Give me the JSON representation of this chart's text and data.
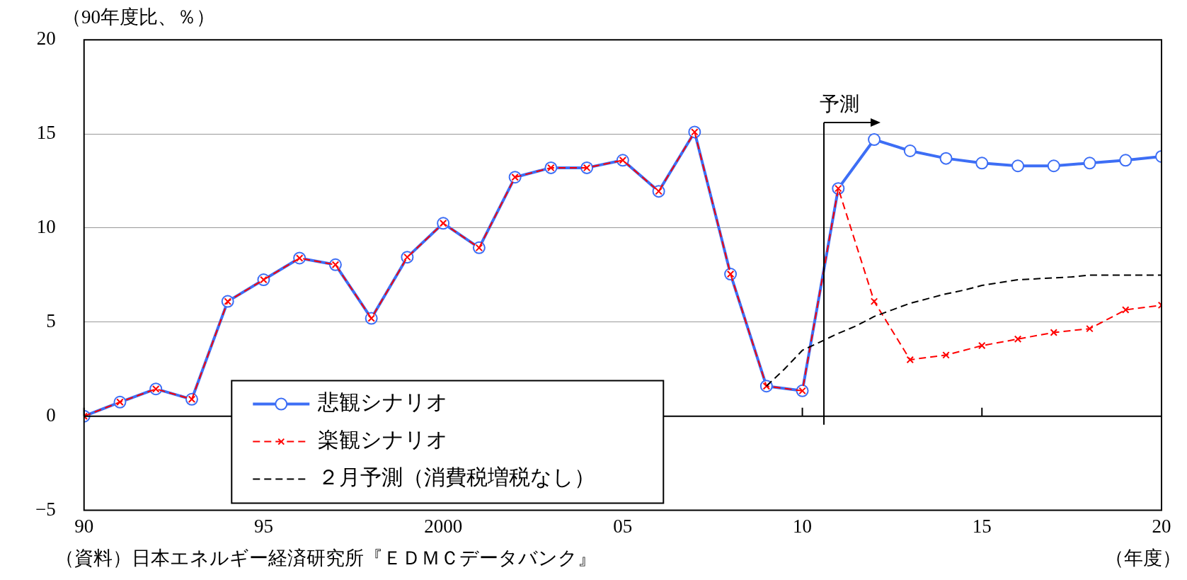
{
  "chart_data": {
    "type": "line",
    "ylabel": "（90年度比、％）",
    "xlabel": "（年度）",
    "x": [
      1990,
      1991,
      1992,
      1993,
      1994,
      1995,
      1996,
      1997,
      1998,
      1999,
      2000,
      2001,
      2002,
      2003,
      2004,
      2005,
      2006,
      2007,
      2008,
      2009,
      2010,
      2011,
      2012,
      2013,
      2014,
      2015,
      2016,
      2017,
      2018,
      2019,
      2020
    ],
    "series": [
      {
        "name": "悲観シナリオ",
        "color": "#3d6ef5",
        "marker": "circle",
        "line_style": "solid",
        "values": [
          0,
          0.75,
          1.45,
          0.9,
          6.1,
          7.25,
          8.4,
          8.05,
          5.2,
          8.45,
          10.25,
          8.95,
          12.7,
          13.2,
          13.2,
          13.6,
          11.95,
          15.1,
          7.55,
          1.6,
          1.35,
          12.1,
          14.7,
          14.1,
          13.7,
          13.45,
          13.3,
          13.3,
          13.45,
          13.6,
          13.8
        ]
      },
      {
        "name": "楽観シナリオ",
        "color": "#ff0000",
        "marker": "cross",
        "line_style": "dashed",
        "values": [
          0,
          0.75,
          1.45,
          0.9,
          6.1,
          7.25,
          8.4,
          8.05,
          5.2,
          8.45,
          10.25,
          8.95,
          12.7,
          13.2,
          13.2,
          13.6,
          11.95,
          15.1,
          7.55,
          1.6,
          1.35,
          12.1,
          6.1,
          3.0,
          3.25,
          3.75,
          4.1,
          4.45,
          4.65,
          5.65,
          5.9
        ]
      },
      {
        "name": "２月予測（消費税増税なし）",
        "color": "#000000",
        "marker": "none",
        "line_style": "dashed",
        "x": [
          2009,
          2009.5,
          2010,
          2011,
          2011.5,
          2012,
          2012.5,
          2013,
          2013.5,
          2014,
          2014.5,
          2015,
          2015.5,
          2016,
          2017,
          2017.5,
          2018,
          2019,
          2020
        ],
        "values": [
          1.6,
          2.5,
          3.5,
          4.4,
          4.8,
          5.3,
          5.65,
          6.0,
          6.25,
          6.5,
          6.7,
          6.95,
          7.1,
          7.25,
          7.35,
          7.4,
          7.5,
          7.5,
          7.5
        ]
      }
    ],
    "xlim": [
      1990,
      2020
    ],
    "xticks": [
      {
        "value": 1990,
        "label": "90"
      },
      {
        "value": 1995,
        "label": "95"
      },
      2000,
      {
        "value": 2005,
        "label": "05"
      },
      {
        "value": 2010,
        "label": "10"
      },
      {
        "value": 2015,
        "label": "15"
      },
      {
        "value": 2020,
        "label": "20"
      }
    ],
    "ylim": [
      -5,
      20
    ],
    "yticks": [
      -5,
      0,
      5,
      10,
      15,
      20
    ],
    "grid": "y",
    "legend": "bottom left",
    "ref_lines": [
      {
        "axis": "x",
        "value": 2010.6,
        "label": "予測",
        "color": "#000000"
      }
    ],
    "annotations": [
      "（資料）日本エネルギー経済研究所『ＥＤＭＣデータバンク』"
    ]
  }
}
